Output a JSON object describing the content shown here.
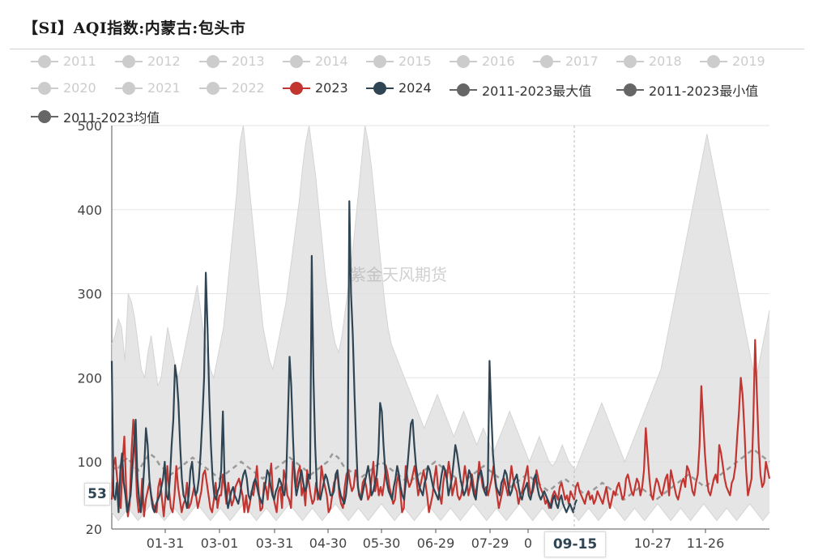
{
  "title": "【SI】AQI指数:内蒙古:包头市",
  "watermark": "紫金天风期货",
  "legend": [
    {
      "label": "2011",
      "color": "#cccccc",
      "active": false
    },
    {
      "label": "2012",
      "color": "#cccccc",
      "active": false
    },
    {
      "label": "2013",
      "color": "#cccccc",
      "active": false
    },
    {
      "label": "2014",
      "color": "#cccccc",
      "active": false
    },
    {
      "label": "2015",
      "color": "#cccccc",
      "active": false
    },
    {
      "label": "2016",
      "color": "#cccccc",
      "active": false
    },
    {
      "label": "2017",
      "color": "#cccccc",
      "active": false
    },
    {
      "label": "2018",
      "color": "#cccccc",
      "active": false
    },
    {
      "label": "2019",
      "color": "#cccccc",
      "active": false
    },
    {
      "label": "2020",
      "color": "#cccccc",
      "active": false
    },
    {
      "label": "2021",
      "color": "#cccccc",
      "active": false
    },
    {
      "label": "2022",
      "color": "#cccccc",
      "active": false
    },
    {
      "label": "2023",
      "color": "#c23531",
      "active": true
    },
    {
      "label": "2024",
      "color": "#2f4554",
      "active": true
    },
    {
      "label": "2011-2023最大值",
      "color": "#666666",
      "active": true
    },
    {
      "label": "2011-2023最小值",
      "color": "#666666",
      "active": true
    },
    {
      "label": "2011-2023均值",
      "color": "#666666",
      "active": true
    }
  ],
  "pointer": {
    "y_label": "53",
    "x_label": "09-15"
  },
  "chart_data": {
    "type": "line",
    "ylim": [
      20,
      500
    ],
    "yticks": [
      20,
      100,
      200,
      300,
      400,
      500
    ],
    "x_tick_labels": [
      "01-31",
      "03-01",
      "03-31",
      "04-30",
      "05-30",
      "06-29",
      "07-29",
      "0",
      "10-27",
      "11-26"
    ],
    "days_in_year": 365,
    "grid": true,
    "legend_position": "top",
    "series": [
      {
        "name": "2023",
        "color": "#c23531",
        "values": [
          55,
          95,
          105,
          80,
          60,
          45,
          100,
          130,
          70,
          35,
          50,
          110,
          150,
          120,
          60,
          40,
          45,
          80,
          35,
          55,
          65,
          75,
          60,
          50,
          45,
          40,
          70,
          80,
          55,
          35,
          60,
          95,
          65,
          45,
          40,
          60,
          95,
          70,
          55,
          40,
          50,
          55,
          75,
          45,
          50,
          60,
          70,
          60,
          45,
          55,
          65,
          85,
          90,
          75,
          60,
          45,
          40,
          55,
          75,
          45,
          60,
          60,
          85,
          70,
          50,
          75,
          60,
          48,
          55,
          70,
          75,
          80,
          70,
          60,
          40,
          60,
          40,
          50,
          65,
          60,
          75,
          95,
          65,
          42,
          45,
          75,
          70,
          55,
          80,
          98,
          60,
          50,
          40,
          65,
          70,
          45,
          90,
          80,
          60,
          55,
          45,
          100,
          90,
          70,
          88,
          95,
          60,
          70,
          48,
          90,
          75,
          60,
          50,
          55,
          75,
          55,
          60,
          95,
          80,
          70,
          60,
          40,
          45,
          60,
          75,
          80,
          85,
          60,
          50,
          45,
          70,
          85,
          90,
          75,
          65,
          70,
          90,
          80,
          60,
          55,
          75,
          80,
          70,
          55,
          60,
          80,
          100,
          65,
          80,
          60,
          70,
          60,
          75,
          95,
          85,
          70,
          60,
          50,
          55,
          75,
          85,
          65,
          40,
          45,
          95,
          80,
          70,
          75,
          85,
          95,
          80,
          60,
          70,
          80,
          90,
          75,
          60,
          40,
          50,
          60,
          80,
          95,
          70,
          60,
          50,
          75,
          90,
          80,
          100,
          85,
          60,
          70,
          80,
          60,
          55,
          60,
          75,
          95,
          80,
          60,
          70,
          85,
          70,
          60,
          75,
          100,
          85,
          70,
          65,
          70,
          60,
          70,
          80,
          95,
          75,
          60,
          45,
          55,
          65,
          80,
          70,
          60,
          75,
          95,
          80,
          70,
          65,
          50,
          60,
          65,
          75,
          85,
          95,
          70,
          60,
          65,
          75,
          90,
          80,
          70,
          65,
          60,
          50,
          55,
          45,
          50,
          60,
          65,
          60,
          55,
          70,
          75,
          65,
          55,
          60,
          50,
          65,
          60,
          55,
          70,
          75,
          65,
          60,
          55,
          50,
          60,
          65,
          55,
          60,
          50,
          55,
          65,
          60,
          55,
          50,
          60,
          70,
          55,
          45,
          55,
          65,
          60,
          70,
          75,
          65,
          55,
          60,
          80,
          85,
          75,
          65,
          60,
          70,
          80,
          75,
          60,
          70,
          90,
          140,
          110,
          80,
          60,
          55,
          70,
          80,
          75,
          65,
          60,
          70,
          80,
          85,
          60,
          90,
          80,
          70,
          60,
          55,
          65,
          75,
          80,
          70,
          95,
          90,
          80,
          65,
          60,
          75,
          85,
          120,
          190,
          150,
          110,
          80,
          65,
          60,
          70,
          80,
          85,
          75,
          120,
          110,
          95,
          80,
          70,
          65,
          60,
          75,
          80,
          95,
          130,
          160,
          200,
          180,
          140,
          90,
          60,
          70,
          80,
          150,
          245,
          180,
          120,
          85,
          70,
          75,
          100,
          90,
          80
        ]
      },
      {
        "name": "2024",
        "color": "#2f4554",
        "values": [
          220,
          60,
          55,
          75,
          40,
          90,
          110,
          75,
          60,
          40,
          50,
          60,
          90,
          120,
          150,
          80,
          55,
          40,
          60,
          95,
          140,
          120,
          80,
          60,
          45,
          40,
          50,
          55,
          60,
          70,
          80,
          100,
          60,
          55,
          80,
          120,
          150,
          215,
          200,
          170,
          120,
          80,
          60,
          55,
          45,
          60,
          90,
          100,
          75,
          60,
          65,
          80,
          110,
          150,
          200,
          325,
          260,
          180,
          120,
          80,
          60,
          55,
          65,
          70,
          90,
          160,
          80,
          60,
          45,
          55,
          65,
          70,
          60,
          55,
          50,
          60,
          75,
          85,
          90,
          80,
          60,
          55,
          65,
          75,
          80,
          70,
          60,
          55,
          50,
          65,
          75,
          90,
          85,
          70,
          60,
          55,
          65,
          70,
          80,
          75,
          65,
          60,
          80,
          150,
          225,
          190,
          130,
          80,
          60,
          70,
          80,
          90,
          75,
          65,
          70,
          85,
          80,
          345,
          200,
          120,
          70,
          60,
          55,
          65,
          75,
          85,
          80,
          70,
          60,
          60,
          65,
          85,
          90,
          70,
          60,
          55,
          50,
          60,
          80,
          410,
          300,
          250,
          180,
          120,
          70,
          60,
          55,
          65,
          75,
          85,
          95,
          80,
          60,
          65,
          75,
          85,
          110,
          170,
          160,
          120,
          90,
          75,
          65,
          60,
          55,
          70,
          80,
          95,
          85,
          70,
          60,
          55,
          75,
          95,
          120,
          145,
          150,
          120,
          95,
          80,
          70,
          65,
          60,
          75,
          80,
          95,
          90,
          80,
          70,
          65,
          60,
          55,
          70,
          85,
          95,
          90,
          80,
          60,
          70,
          80,
          100,
          120,
          110,
          95,
          80,
          70,
          60,
          65,
          75,
          90,
          85,
          70,
          60,
          55,
          75,
          85,
          90,
          80,
          65,
          60,
          75,
          220,
          160,
          110,
          85,
          70,
          65,
          60,
          75,
          80,
          90,
          85,
          70,
          60,
          65,
          75,
          80,
          85,
          70,
          60,
          55,
          65,
          70,
          75,
          60,
          55,
          65,
          80,
          85,
          70,
          60,
          55,
          60,
          65,
          60,
          55,
          50,
          45,
          55,
          60,
          50,
          45,
          55,
          60,
          50,
          45,
          40,
          45,
          50,
          45,
          40,
          50,
          55
        ]
      },
      {
        "name": "2011-2023最大值",
        "color": "#dddddd",
        "values": [
          240,
          250,
          270,
          260,
          220,
          300,
          290,
          270,
          240,
          210,
          200,
          230,
          250,
          220,
          190,
          200,
          230,
          260,
          240,
          220,
          200,
          210,
          230,
          250,
          270,
          290,
          310,
          280,
          250,
          230,
          210,
          200,
          220,
          240,
          260,
          300,
          340,
          380,
          420,
          480,
          500,
          460,
          420,
          380,
          340,
          300,
          260,
          240,
          220,
          210,
          230,
          250,
          270,
          290,
          320,
          350,
          380,
          410,
          450,
          480,
          500,
          470,
          440,
          400,
          360,
          320,
          290,
          260,
          240,
          230,
          250,
          280,
          310,
          340,
          380,
          420,
          460,
          500,
          480,
          450,
          410,
          370,
          330,
          290,
          260,
          240,
          230,
          220,
          210,
          200,
          190,
          180,
          170,
          160,
          150,
          140,
          150,
          160,
          170,
          180,
          170,
          160,
          150,
          140,
          130,
          140,
          150,
          160,
          150,
          140,
          130,
          120,
          130,
          140,
          130,
          120,
          110,
          120,
          130,
          140,
          150,
          160,
          150,
          140,
          130,
          120,
          110,
          100,
          110,
          120,
          130,
          120,
          110,
          100,
          95,
          100,
          110,
          120,
          110,
          100,
          95,
          90,
          100,
          110,
          120,
          130,
          140,
          150,
          160,
          170,
          160,
          150,
          140,
          130,
          120,
          110,
          100,
          110,
          120,
          130,
          140,
          150,
          160,
          170,
          180,
          190,
          200,
          210,
          230,
          250,
          270,
          290,
          310,
          330,
          350,
          370,
          390,
          410,
          430,
          450,
          470,
          490,
          470,
          450,
          430,
          410,
          390,
          370,
          350,
          330,
          310,
          290,
          270,
          250,
          230,
          210,
          200,
          220,
          240,
          260,
          280
        ]
      },
      {
        "name": "2011-2023最小值",
        "color": "#dddddd",
        "values": [
          40,
          35,
          30,
          35,
          40,
          45,
          40,
          35,
          30,
          35,
          40,
          45,
          50,
          45,
          40,
          35,
          30,
          35,
          40,
          45,
          40,
          35,
          30,
          35,
          40,
          45,
          50,
          45,
          40,
          35,
          30,
          35,
          40,
          45,
          40,
          35,
          30,
          35,
          40,
          45,
          50,
          45,
          40,
          35,
          30,
          35,
          40,
          45,
          40,
          35,
          30,
          35,
          40,
          45,
          50,
          45,
          40,
          35,
          30,
          35,
          40,
          45,
          40,
          35,
          30,
          35,
          40,
          45,
          50,
          45,
          40,
          35,
          30,
          35,
          40,
          45,
          40,
          35,
          30,
          35,
          40,
          45,
          50,
          45,
          40,
          35,
          30,
          35,
          40,
          45,
          40,
          35,
          30,
          35,
          40,
          45,
          50,
          45,
          40,
          35,
          30,
          35,
          40,
          45,
          40,
          35,
          30,
          35,
          40,
          45,
          50,
          45,
          40,
          35,
          30,
          35,
          40,
          45,
          40,
          35,
          30,
          35,
          40,
          45,
          50,
          45,
          40,
          35,
          30,
          35,
          40,
          45,
          40,
          35,
          30,
          35,
          40,
          45,
          50,
          45,
          40,
          35,
          30,
          35,
          40,
          45,
          40,
          35,
          30,
          35,
          40,
          45,
          50,
          45,
          40,
          35,
          30,
          35,
          40,
          45,
          40,
          35,
          30,
          35,
          40,
          45,
          50,
          45,
          40,
          35,
          30,
          35,
          40,
          45,
          40,
          35,
          30,
          35,
          40,
          45,
          50,
          45,
          40,
          35,
          30,
          35,
          40,
          45,
          40,
          35,
          30,
          35,
          40,
          45,
          50,
          45,
          40,
          35,
          30,
          35,
          40
        ]
      },
      {
        "name": "2011-2023均值",
        "color": "#999999",
        "values": [
          95,
          90,
          100,
          105,
          95,
          90,
          100,
          110,
          105,
          95,
          90,
          85,
          90,
          95,
          100,
          105,
          100,
          95,
          90,
          85,
          80,
          85,
          90,
          95,
          100,
          95,
          90,
          85,
          80,
          85,
          90,
          95,
          100,
          105,
          100,
          95,
          90,
          85,
          90,
          95,
          100,
          110,
          105,
          95,
          90,
          85,
          80,
          85,
          90,
          95,
          100,
          95,
          90,
          85,
          80,
          75,
          80,
          85,
          90,
          95,
          100,
          95,
          90,
          85,
          80,
          75,
          80,
          85,
          90,
          95,
          90,
          85,
          80,
          75,
          70,
          75,
          80,
          85,
          80,
          75,
          70,
          65,
          70,
          75,
          80,
          75,
          70,
          65,
          60,
          65,
          70,
          75,
          70,
          65,
          60,
          55,
          60,
          65,
          70,
          65,
          60,
          55,
          60,
          65,
          70,
          75,
          80,
          85,
          80,
          75,
          70,
          75,
          80,
          85,
          90,
          95,
          100,
          105,
          110,
          115,
          110,
          105,
          100
        ]
      }
    ]
  }
}
